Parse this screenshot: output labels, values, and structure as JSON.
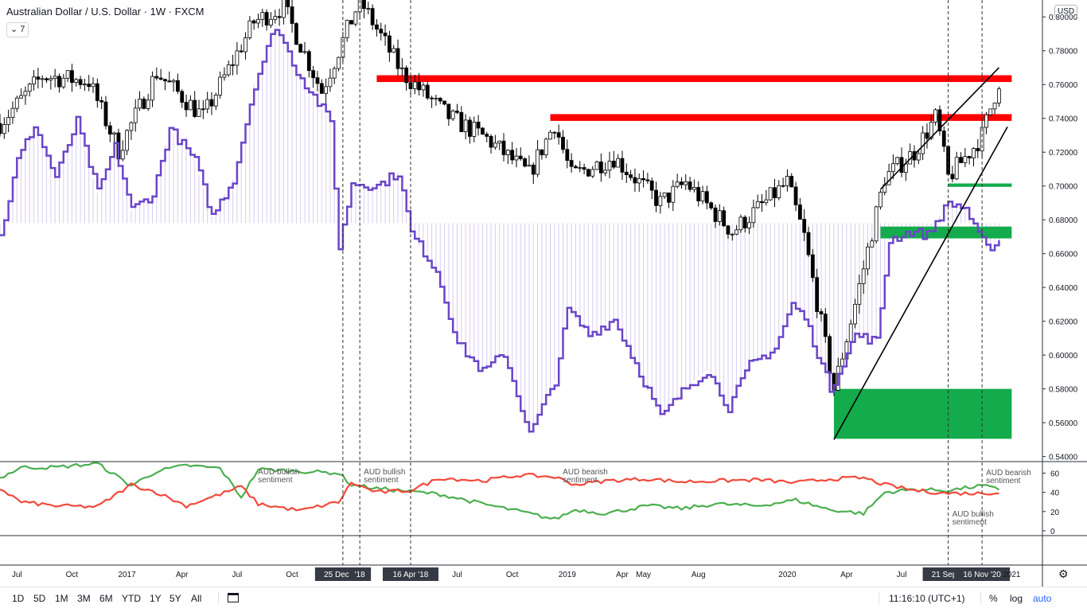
{
  "header": {
    "title": "Australian Dollar / U.S. Dollar · 1W · FXCM",
    "indicator_count": "7",
    "currency": "USD"
  },
  "colors": {
    "bullish_candle": "#ffffff",
    "bearish_candle": "#000000",
    "resistance_zone": "#ff0000",
    "support_zone": "#13ab4c",
    "net_position_line": "#6a45c9",
    "bullish_sentiment_line": "#4caf50",
    "bearish_sentiment_line": "#f2493a"
  },
  "chart_data": [
    {
      "type": "candlestick",
      "title": "Australian Dollar / U.S. Dollar · 1W · FXCM",
      "y_axis_ticks": [
        "0.54000",
        "0.56000",
        "0.58000",
        "0.60000",
        "0.62000",
        "0.64000",
        "0.66000",
        "0.68000",
        "0.70000",
        "0.72000",
        "0.74000",
        "0.76000",
        "0.78000",
        "0.80000"
      ],
      "ylim": [
        0.537,
        0.81
      ],
      "x_axis_ticks": [
        "Jul",
        "Oct",
        "2017",
        "Apr",
        "Jul",
        "Oct",
        "25 Dec '17",
        "'18",
        "16 Apr '18",
        "Jul",
        "Oct",
        "2019",
        "Apr",
        "May",
        "Aug",
        "2020",
        "Apr",
        "Jul",
        "21 Sep '2",
        "16 Nov '20",
        "2021"
      ],
      "price_path": [
        {
          "date": "2016-06-06",
          "close": 0.737
        },
        {
          "date": "2016-08-15",
          "close": 0.765
        },
        {
          "date": "2016-10-31",
          "close": 0.762
        },
        {
          "date": "2016-12-19",
          "close": 0.721
        },
        {
          "date": "2017-02-20",
          "close": 0.767
        },
        {
          "date": "2017-05-08",
          "close": 0.741
        },
        {
          "date": "2017-07-31",
          "close": 0.797
        },
        {
          "date": "2017-09-18",
          "close": 0.806
        },
        {
          "date": "2017-11-20",
          "close": 0.756
        },
        {
          "date": "2018-01-22",
          "close": 0.81
        },
        {
          "date": "2018-04-02",
          "close": 0.767
        },
        {
          "date": "2018-06-18",
          "close": 0.741
        },
        {
          "date": "2018-08-20",
          "close": 0.728
        },
        {
          "date": "2018-10-29",
          "close": 0.707
        },
        {
          "date": "2018-12-10",
          "close": 0.737
        },
        {
          "date": "2019-01-07",
          "close": 0.706
        },
        {
          "date": "2019-03-18",
          "close": 0.717
        },
        {
          "date": "2019-06-03",
          "close": 0.69
        },
        {
          "date": "2019-07-15",
          "close": 0.702
        },
        {
          "date": "2019-09-30",
          "close": 0.673
        },
        {
          "date": "2019-12-30",
          "close": 0.702
        },
        {
          "date": "2020-01-27",
          "close": 0.67
        },
        {
          "date": "2020-03-16",
          "close": 0.58
        },
        {
          "date": "2020-04-20",
          "close": 0.63
        },
        {
          "date": "2020-06-08",
          "close": 0.705
        },
        {
          "date": "2020-07-27",
          "close": 0.72
        },
        {
          "date": "2020-09-01",
          "close": 0.741
        },
        {
          "date": "2020-09-21",
          "close": 0.705
        },
        {
          "date": "2020-11-02",
          "close": 0.723
        },
        {
          "date": "2020-11-16",
          "close": 0.73
        },
        {
          "date": "2020-12-14",
          "close": 0.762
        }
      ],
      "zones": [
        {
          "name": "resistance",
          "color": "#ff0000",
          "from": "2018-02-19",
          "to": "2021-01-04",
          "low": 0.7615,
          "high": 0.7655
        },
        {
          "name": "resistance",
          "color": "#ff0000",
          "from": "2018-12-03",
          "to": "2021-01-04",
          "low": 0.7385,
          "high": 0.7425
        },
        {
          "name": "support",
          "color": "#13ab4c",
          "from": "2020-09-21",
          "to": "2021-01-04",
          "low": 0.6995,
          "high": 0.7015
        },
        {
          "name": "support",
          "color": "#13ab4c",
          "from": "2020-06-01",
          "to": "2021-01-04",
          "low": 0.669,
          "high": 0.676
        },
        {
          "name": "support",
          "color": "#13ab4c",
          "from": "2020-03-16",
          "to": "2021-01-04",
          "low": 0.5505,
          "high": 0.58
        }
      ],
      "trendlines": [
        {
          "from": {
            "date": "2020-03-16",
            "price": 0.55
          },
          "to": {
            "date": "2020-12-28",
            "price": 0.735
          }
        },
        {
          "from": {
            "date": "2020-06-01",
            "price": 0.698
          },
          "to": {
            "date": "2020-12-14",
            "price": 0.77
          }
        }
      ],
      "vertical_markers": [
        "2017-12-25",
        "2018-01-22",
        "2018-04-16",
        "2020-09-21",
        "2020-11-16"
      ],
      "net_position_series": [
        {
          "date": "2016-06-06",
          "price": 0.67
        },
        {
          "date": "2016-07-04",
          "price": 0.715
        },
        {
          "date": "2016-08-01",
          "price": 0.736
        },
        {
          "date": "2016-09-05",
          "price": 0.705
        },
        {
          "date": "2016-10-10",
          "price": 0.738
        },
        {
          "date": "2016-11-14",
          "price": 0.696
        },
        {
          "date": "2016-12-12",
          "price": 0.723
        },
        {
          "date": "2017-01-09",
          "price": 0.686
        },
        {
          "date": "2017-02-13",
          "price": 0.695
        },
        {
          "date": "2017-03-13",
          "price": 0.734
        },
        {
          "date": "2017-04-24",
          "price": 0.715
        },
        {
          "date": "2017-05-22",
          "price": 0.682
        },
        {
          "date": "2017-06-26",
          "price": 0.704
        },
        {
          "date": "2017-07-31",
          "price": 0.76
        },
        {
          "date": "2017-09-04",
          "price": 0.795
        },
        {
          "date": "2017-10-09",
          "price": 0.768
        },
        {
          "date": "2017-12-04",
          "price": 0.738
        },
        {
          "date": "2017-12-18",
          "price": 0.663
        },
        {
          "date": "2018-01-08",
          "price": 0.702
        },
        {
          "date": "2018-02-19",
          "price": 0.7
        },
        {
          "date": "2018-03-26",
          "price": 0.708
        },
        {
          "date": "2018-04-16",
          "price": 0.672
        },
        {
          "date": "2018-05-28",
          "price": 0.65
        },
        {
          "date": "2018-07-02",
          "price": 0.607
        },
        {
          "date": "2018-08-13",
          "price": 0.59
        },
        {
          "date": "2018-09-17",
          "price": 0.601
        },
        {
          "date": "2018-10-29",
          "price": 0.553
        },
        {
          "date": "2018-12-10",
          "price": 0.585
        },
        {
          "date": "2018-12-31",
          "price": 0.627
        },
        {
          "date": "2019-02-04",
          "price": 0.612
        },
        {
          "date": "2019-03-18",
          "price": 0.621
        },
        {
          "date": "2019-04-22",
          "price": 0.595
        },
        {
          "date": "2019-06-03",
          "price": 0.563
        },
        {
          "date": "2019-07-15",
          "price": 0.581
        },
        {
          "date": "2019-08-19",
          "price": 0.591
        },
        {
          "date": "2019-09-23",
          "price": 0.569
        },
        {
          "date": "2019-10-28",
          "price": 0.594
        },
        {
          "date": "2019-12-09",
          "price": 0.604
        },
        {
          "date": "2020-01-06",
          "price": 0.63
        },
        {
          "date": "2020-01-27",
          "price": 0.622
        },
        {
          "date": "2020-03-09",
          "price": 0.58
        },
        {
          "date": "2020-04-20",
          "price": 0.612
        },
        {
          "date": "2020-05-25",
          "price": 0.608
        },
        {
          "date": "2020-06-15",
          "price": 0.668
        },
        {
          "date": "2020-07-20",
          "price": 0.673
        },
        {
          "date": "2020-08-17",
          "price": 0.671
        },
        {
          "date": "2020-09-21",
          "price": 0.69
        },
        {
          "date": "2020-10-19",
          "price": 0.687
        },
        {
          "date": "2020-11-02",
          "price": 0.675
        },
        {
          "date": "2020-11-23",
          "price": 0.663
        },
        {
          "date": "2020-12-14",
          "price": 0.668
        }
      ]
    },
    {
      "type": "line",
      "y_axis_ticks": [
        "0",
        "20",
        "40",
        "60"
      ],
      "ylim": [
        -5,
        72
      ],
      "series": [
        {
          "color": "#4caf50",
          "values": [
            {
              "date": "2016-06-06",
              "y": 55
            },
            {
              "date": "2016-07-11",
              "y": 66
            },
            {
              "date": "2016-09-05",
              "y": 66
            },
            {
              "date": "2016-11-14",
              "y": 70
            },
            {
              "date": "2017-01-09",
              "y": 47
            },
            {
              "date": "2017-02-20",
              "y": 62
            },
            {
              "date": "2017-04-10",
              "y": 68
            },
            {
              "date": "2017-06-05",
              "y": 65
            },
            {
              "date": "2017-07-10",
              "y": 35
            },
            {
              "date": "2017-08-07",
              "y": 64
            },
            {
              "date": "2017-10-16",
              "y": 62
            },
            {
              "date": "2017-12-18",
              "y": 60
            },
            {
              "date": "2018-01-08",
              "y": 48
            },
            {
              "date": "2018-02-19",
              "y": 44
            },
            {
              "date": "2018-04-16",
              "y": 41
            },
            {
              "date": "2018-06-04",
              "y": 38
            },
            {
              "date": "2018-08-13",
              "y": 28
            },
            {
              "date": "2018-10-15",
              "y": 20
            },
            {
              "date": "2018-12-10",
              "y": 12
            },
            {
              "date": "2019-01-14",
              "y": 22
            },
            {
              "date": "2019-03-04",
              "y": 18
            },
            {
              "date": "2019-05-13",
              "y": 26
            },
            {
              "date": "2019-07-08",
              "y": 23
            },
            {
              "date": "2019-09-02",
              "y": 28
            },
            {
              "date": "2019-11-11",
              "y": 26
            },
            {
              "date": "2020-01-13",
              "y": 32
            },
            {
              "date": "2020-03-09",
              "y": 22
            },
            {
              "date": "2020-05-04",
              "y": 18
            },
            {
              "date": "2020-06-08",
              "y": 40
            },
            {
              "date": "2020-07-27",
              "y": 43
            },
            {
              "date": "2020-09-21",
              "y": 42
            },
            {
              "date": "2020-11-16",
              "y": 47
            },
            {
              "date": "2020-12-14",
              "y": 43
            }
          ]
        },
        {
          "color": "#f2493a",
          "values": [
            {
              "date": "2016-06-06",
              "y": 44
            },
            {
              "date": "2016-07-11",
              "y": 30
            },
            {
              "date": "2016-09-05",
              "y": 26
            },
            {
              "date": "2016-11-14",
              "y": 25
            },
            {
              "date": "2017-01-09",
              "y": 48
            },
            {
              "date": "2017-02-20",
              "y": 40
            },
            {
              "date": "2017-04-10",
              "y": 26
            },
            {
              "date": "2017-06-05",
              "y": 38
            },
            {
              "date": "2017-07-10",
              "y": 46
            },
            {
              "date": "2017-08-07",
              "y": 28
            },
            {
              "date": "2017-10-16",
              "y": 21
            },
            {
              "date": "2017-12-18",
              "y": 30
            },
            {
              "date": "2018-01-08",
              "y": 50
            },
            {
              "date": "2018-02-19",
              "y": 40
            },
            {
              "date": "2018-04-16",
              "y": 42
            },
            {
              "date": "2018-06-04",
              "y": 55
            },
            {
              "date": "2018-08-13",
              "y": 52
            },
            {
              "date": "2018-10-15",
              "y": 58
            },
            {
              "date": "2018-12-10",
              "y": 56
            },
            {
              "date": "2019-01-14",
              "y": 48
            },
            {
              "date": "2019-03-04",
              "y": 52
            },
            {
              "date": "2019-05-13",
              "y": 54
            },
            {
              "date": "2019-07-08",
              "y": 51
            },
            {
              "date": "2019-09-02",
              "y": 52
            },
            {
              "date": "2019-11-11",
              "y": 53
            },
            {
              "date": "2020-01-13",
              "y": 50
            },
            {
              "date": "2020-03-09",
              "y": 54
            },
            {
              "date": "2020-05-04",
              "y": 55
            },
            {
              "date": "2020-06-08",
              "y": 48
            },
            {
              "date": "2020-07-27",
              "y": 42
            },
            {
              "date": "2020-09-21",
              "y": 39
            },
            {
              "date": "2020-11-16",
              "y": 39
            },
            {
              "date": "2020-12-14",
              "y": 40
            }
          ]
        }
      ],
      "annotations": [
        {
          "text": "AUD bullish sentiment",
          "date": "2017-07-31",
          "y": 67
        },
        {
          "text": "AUD bullish sentiment",
          "date": "2018-01-22",
          "y": 67
        },
        {
          "text": "AUD bearish sentiment",
          "date": "2018-12-17",
          "y": 67
        },
        {
          "text": "AUD bearish sentiment",
          "date": "2020-11-16",
          "y": 66
        },
        {
          "text": "AUD bullish sentiment",
          "date": "2020-09-21",
          "y": 23
        }
      ]
    }
  ],
  "footer": {
    "ranges": [
      "1D",
      "5D",
      "1M",
      "3M",
      "6M",
      "YTD",
      "1Y",
      "5Y",
      "All"
    ],
    "clock": "11:16:10 (UTC+1)",
    "percent": "%",
    "log": "log",
    "auto": "auto"
  }
}
